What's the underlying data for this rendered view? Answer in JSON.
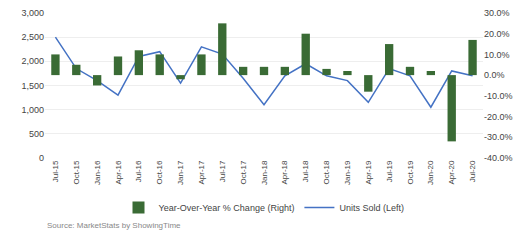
{
  "chart_data": {
    "type": "bar",
    "categories": [
      "Jul-15",
      "Oct-15",
      "Jan-16",
      "Apr-16",
      "Jul-16",
      "Oct-16",
      "Jan-17",
      "Apr-17",
      "Jul-17",
      "Oct-17",
      "Jan-18",
      "Apr-18",
      "Jul-18",
      "Oct-18",
      "Jan-19",
      "Apr-19",
      "Jul-19",
      "Oct-19",
      "Jan-20",
      "Apr-20",
      "Jul-20"
    ],
    "series": [
      {
        "name": "Year-Over-Year % Change (Right)",
        "type": "bar",
        "axis": "y2",
        "color": "#3a6b35",
        "values": [
          0.1,
          0.05,
          -0.05,
          0.09,
          0.12,
          0.1,
          -0.02,
          0.1,
          0.25,
          0.04,
          0.04,
          0.04,
          0.2,
          0.03,
          0.02,
          -0.08,
          0.15,
          0.04,
          0.02,
          -0.32,
          0.17
        ]
      },
      {
        "name": "Units Sold (Left)",
        "type": "line",
        "color": "#4472c4",
        "values": [
          2500,
          1850,
          1600,
          1300,
          2100,
          2200,
          1550,
          2300,
          2150,
          1650,
          1100,
          1700,
          1950,
          1700,
          1600,
          1150,
          1850,
          1700,
          1050,
          1800,
          1700
        ]
      }
    ],
    "ylim": [
      0,
      3000
    ],
    "yticks": [
      0,
      500,
      {
        "value": 1000,
        "label": "1,000"
      },
      {
        "value": 1500,
        "label": "1,500"
      },
      {
        "value": 2000,
        "label": "2,000"
      },
      {
        "value": 2500,
        "label": "2,500"
      },
      {
        "value": 3000,
        "label": "3,000"
      }
    ],
    "y2lim": [
      -0.4,
      0.3
    ],
    "y2ticks": [
      {
        "value": -0.4,
        "label": "-40.0%"
      },
      {
        "value": -0.3,
        "label": "-30.0%"
      },
      {
        "value": -0.2,
        "label": "-20.0%"
      },
      {
        "value": -0.1,
        "label": "-10.0%"
      },
      {
        "value": 0.0,
        "label": "0.0%"
      },
      {
        "value": 0.1,
        "label": "10.0%"
      },
      {
        "value": 0.2,
        "label": "20.0%"
      },
      {
        "value": 0.3,
        "label": "30.0%"
      }
    ],
    "grid": true,
    "legend": "bottom",
    "annotations": [
      "Source: MarketStats by ShowingTime"
    ]
  }
}
